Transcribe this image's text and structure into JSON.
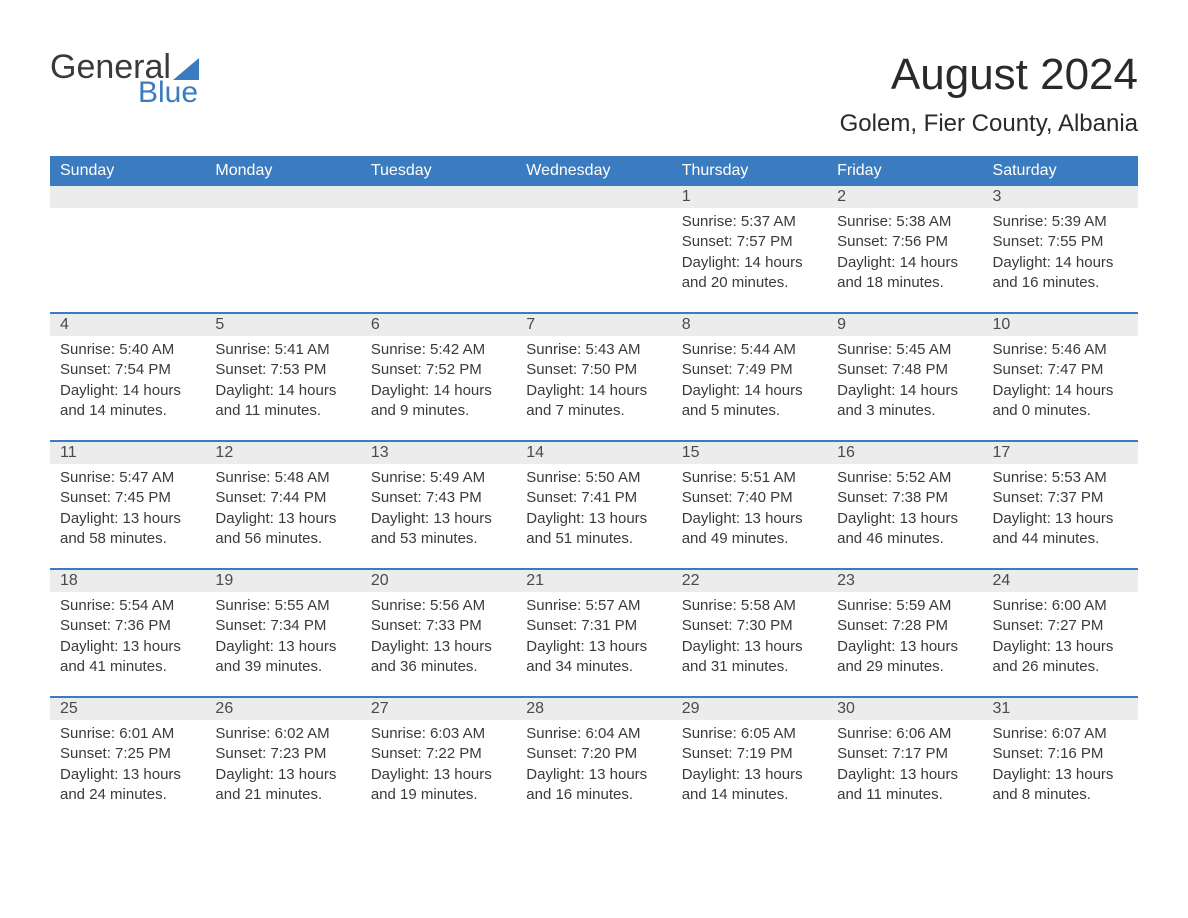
{
  "logo": {
    "word1": "General",
    "word2": "Blue",
    "icon_color": "#3b7bbf"
  },
  "title": "August 2024",
  "location": "Golem, Fier County, Albania",
  "colors": {
    "header_bg": "#3b7bbf",
    "header_text": "#ffffff",
    "daynum_bg": "#ececec",
    "text": "#3a3a3a",
    "rule": "#3b7bbf",
    "background": "#ffffff"
  },
  "day_headers": [
    "Sunday",
    "Monday",
    "Tuesday",
    "Wednesday",
    "Thursday",
    "Friday",
    "Saturday"
  ],
  "weeks": [
    [
      {
        "day": "",
        "empty": true
      },
      {
        "day": "",
        "empty": true
      },
      {
        "day": "",
        "empty": true
      },
      {
        "day": "",
        "empty": true
      },
      {
        "day": "1",
        "sunrise": "Sunrise: 5:37 AM",
        "sunset": "Sunset: 7:57 PM",
        "daylight1": "Daylight: 14 hours",
        "daylight2": "and 20 minutes."
      },
      {
        "day": "2",
        "sunrise": "Sunrise: 5:38 AM",
        "sunset": "Sunset: 7:56 PM",
        "daylight1": "Daylight: 14 hours",
        "daylight2": "and 18 minutes."
      },
      {
        "day": "3",
        "sunrise": "Sunrise: 5:39 AM",
        "sunset": "Sunset: 7:55 PM",
        "daylight1": "Daylight: 14 hours",
        "daylight2": "and 16 minutes."
      }
    ],
    [
      {
        "day": "4",
        "sunrise": "Sunrise: 5:40 AM",
        "sunset": "Sunset: 7:54 PM",
        "daylight1": "Daylight: 14 hours",
        "daylight2": "and 14 minutes."
      },
      {
        "day": "5",
        "sunrise": "Sunrise: 5:41 AM",
        "sunset": "Sunset: 7:53 PM",
        "daylight1": "Daylight: 14 hours",
        "daylight2": "and 11 minutes."
      },
      {
        "day": "6",
        "sunrise": "Sunrise: 5:42 AM",
        "sunset": "Sunset: 7:52 PM",
        "daylight1": "Daylight: 14 hours",
        "daylight2": "and 9 minutes."
      },
      {
        "day": "7",
        "sunrise": "Sunrise: 5:43 AM",
        "sunset": "Sunset: 7:50 PM",
        "daylight1": "Daylight: 14 hours",
        "daylight2": "and 7 minutes."
      },
      {
        "day": "8",
        "sunrise": "Sunrise: 5:44 AM",
        "sunset": "Sunset: 7:49 PM",
        "daylight1": "Daylight: 14 hours",
        "daylight2": "and 5 minutes."
      },
      {
        "day": "9",
        "sunrise": "Sunrise: 5:45 AM",
        "sunset": "Sunset: 7:48 PM",
        "daylight1": "Daylight: 14 hours",
        "daylight2": "and 3 minutes."
      },
      {
        "day": "10",
        "sunrise": "Sunrise: 5:46 AM",
        "sunset": "Sunset: 7:47 PM",
        "daylight1": "Daylight: 14 hours",
        "daylight2": "and 0 minutes."
      }
    ],
    [
      {
        "day": "11",
        "sunrise": "Sunrise: 5:47 AM",
        "sunset": "Sunset: 7:45 PM",
        "daylight1": "Daylight: 13 hours",
        "daylight2": "and 58 minutes."
      },
      {
        "day": "12",
        "sunrise": "Sunrise: 5:48 AM",
        "sunset": "Sunset: 7:44 PM",
        "daylight1": "Daylight: 13 hours",
        "daylight2": "and 56 minutes."
      },
      {
        "day": "13",
        "sunrise": "Sunrise: 5:49 AM",
        "sunset": "Sunset: 7:43 PM",
        "daylight1": "Daylight: 13 hours",
        "daylight2": "and 53 minutes."
      },
      {
        "day": "14",
        "sunrise": "Sunrise: 5:50 AM",
        "sunset": "Sunset: 7:41 PM",
        "daylight1": "Daylight: 13 hours",
        "daylight2": "and 51 minutes."
      },
      {
        "day": "15",
        "sunrise": "Sunrise: 5:51 AM",
        "sunset": "Sunset: 7:40 PM",
        "daylight1": "Daylight: 13 hours",
        "daylight2": "and 49 minutes."
      },
      {
        "day": "16",
        "sunrise": "Sunrise: 5:52 AM",
        "sunset": "Sunset: 7:38 PM",
        "daylight1": "Daylight: 13 hours",
        "daylight2": "and 46 minutes."
      },
      {
        "day": "17",
        "sunrise": "Sunrise: 5:53 AM",
        "sunset": "Sunset: 7:37 PM",
        "daylight1": "Daylight: 13 hours",
        "daylight2": "and 44 minutes."
      }
    ],
    [
      {
        "day": "18",
        "sunrise": "Sunrise: 5:54 AM",
        "sunset": "Sunset: 7:36 PM",
        "daylight1": "Daylight: 13 hours",
        "daylight2": "and 41 minutes."
      },
      {
        "day": "19",
        "sunrise": "Sunrise: 5:55 AM",
        "sunset": "Sunset: 7:34 PM",
        "daylight1": "Daylight: 13 hours",
        "daylight2": "and 39 minutes."
      },
      {
        "day": "20",
        "sunrise": "Sunrise: 5:56 AM",
        "sunset": "Sunset: 7:33 PM",
        "daylight1": "Daylight: 13 hours",
        "daylight2": "and 36 minutes."
      },
      {
        "day": "21",
        "sunrise": "Sunrise: 5:57 AM",
        "sunset": "Sunset: 7:31 PM",
        "daylight1": "Daylight: 13 hours",
        "daylight2": "and 34 minutes."
      },
      {
        "day": "22",
        "sunrise": "Sunrise: 5:58 AM",
        "sunset": "Sunset: 7:30 PM",
        "daylight1": "Daylight: 13 hours",
        "daylight2": "and 31 minutes."
      },
      {
        "day": "23",
        "sunrise": "Sunrise: 5:59 AM",
        "sunset": "Sunset: 7:28 PM",
        "daylight1": "Daylight: 13 hours",
        "daylight2": "and 29 minutes."
      },
      {
        "day": "24",
        "sunrise": "Sunrise: 6:00 AM",
        "sunset": "Sunset: 7:27 PM",
        "daylight1": "Daylight: 13 hours",
        "daylight2": "and 26 minutes."
      }
    ],
    [
      {
        "day": "25",
        "sunrise": "Sunrise: 6:01 AM",
        "sunset": "Sunset: 7:25 PM",
        "daylight1": "Daylight: 13 hours",
        "daylight2": "and 24 minutes."
      },
      {
        "day": "26",
        "sunrise": "Sunrise: 6:02 AM",
        "sunset": "Sunset: 7:23 PM",
        "daylight1": "Daylight: 13 hours",
        "daylight2": "and 21 minutes."
      },
      {
        "day": "27",
        "sunrise": "Sunrise: 6:03 AM",
        "sunset": "Sunset: 7:22 PM",
        "daylight1": "Daylight: 13 hours",
        "daylight2": "and 19 minutes."
      },
      {
        "day": "28",
        "sunrise": "Sunrise: 6:04 AM",
        "sunset": "Sunset: 7:20 PM",
        "daylight1": "Daylight: 13 hours",
        "daylight2": "and 16 minutes."
      },
      {
        "day": "29",
        "sunrise": "Sunrise: 6:05 AM",
        "sunset": "Sunset: 7:19 PM",
        "daylight1": "Daylight: 13 hours",
        "daylight2": "and 14 minutes."
      },
      {
        "day": "30",
        "sunrise": "Sunrise: 6:06 AM",
        "sunset": "Sunset: 7:17 PM",
        "daylight1": "Daylight: 13 hours",
        "daylight2": "and 11 minutes."
      },
      {
        "day": "31",
        "sunrise": "Sunrise: 6:07 AM",
        "sunset": "Sunset: 7:16 PM",
        "daylight1": "Daylight: 13 hours",
        "daylight2": "and 8 minutes."
      }
    ]
  ]
}
